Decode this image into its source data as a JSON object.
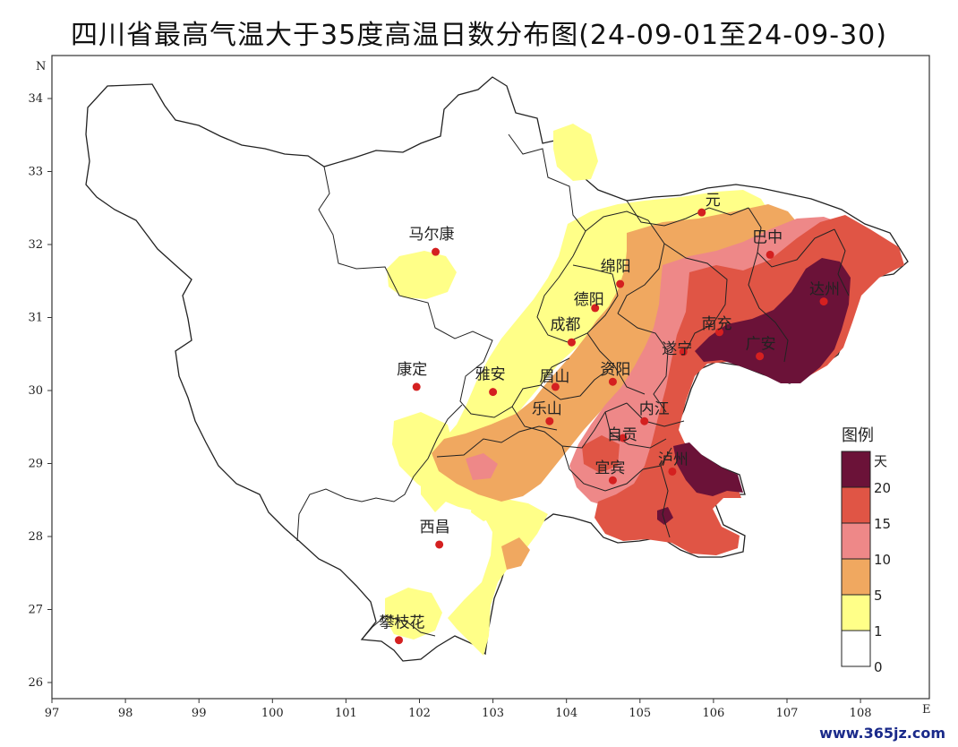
{
  "title": "四川省最高气温大于35度高温日数分布图(24-09-01至24-09-30)",
  "watermark": "www.365jz.com",
  "axes": {
    "x_ticks": [
      "97",
      "98",
      "99",
      "100",
      "101",
      "102",
      "103",
      "104",
      "105",
      "106",
      "107",
      "108"
    ],
    "y_ticks": [
      "26",
      "27",
      "28",
      "29",
      "30",
      "31",
      "32",
      "33",
      "34"
    ],
    "x_end_label": "E",
    "y_end_label": "N"
  },
  "colors": {
    "c0": "#ffffff",
    "c1": "#ffff88",
    "c5": "#f0a860",
    "c10": "#ee8888",
    "c15": "#e05545",
    "c20": "#6b1238",
    "boundary": "#222222",
    "city_dot": "#d42020"
  },
  "cities": [
    {
      "name": "马尔康",
      "lon": 102.22,
      "lat": 31.9
    },
    {
      "name": "康定",
      "lon": 101.96,
      "lat": 30.05
    },
    {
      "name": "雅安",
      "lon": 103.0,
      "lat": 29.98
    },
    {
      "name": "成都",
      "lon": 104.07,
      "lat": 30.66
    },
    {
      "name": "绵阳",
      "lon": 104.73,
      "lat": 31.46
    },
    {
      "name": "德阳",
      "lon": 104.39,
      "lat": 31.13
    },
    {
      "name": "眉山",
      "lon": 103.85,
      "lat": 30.05
    },
    {
      "name": "乐山",
      "lon": 103.77,
      "lat": 29.58
    },
    {
      "name": "资阳",
      "lon": 104.63,
      "lat": 30.12
    },
    {
      "name": "遂宁",
      "lon": 105.59,
      "lat": 30.53
    },
    {
      "name": "南充",
      "lon": 106.08,
      "lat": 30.8
    },
    {
      "name": "广安",
      "lon": 106.63,
      "lat": 30.47
    },
    {
      "name": "达州",
      "lon": 107.5,
      "lat": 31.22
    },
    {
      "name": "巴中",
      "lon": 106.77,
      "lat": 31.86
    },
    {
      "name": "广元",
      "lon": 105.84,
      "lat": 32.44
    },
    {
      "name": "内江",
      "lon": 105.06,
      "lat": 29.58
    },
    {
      "name": "自贡",
      "lon": 104.77,
      "lat": 29.35
    },
    {
      "name": "宜宾",
      "lon": 104.63,
      "lat": 28.77
    },
    {
      "name": "泸州",
      "lon": 105.44,
      "lat": 28.89
    },
    {
      "name": "西昌",
      "lon": 102.27,
      "lat": 27.89
    },
    {
      "name": "攀枝花",
      "lon": 101.72,
      "lat": 26.58
    }
  ],
  "city_labels": {
    "马尔康": "马尔康",
    "康定": "康定",
    "雅安": "雅安",
    "成都": "成都",
    "绵阳": "绵阳",
    "德阳": "德阳",
    "眉山": "眉山",
    "乐山": "乐山",
    "资阳": "资阳",
    "遂宁": "遂宁",
    "南充": "南充",
    "广安": "广安",
    "达州": "达州",
    "巴中": "巴中",
    "广元": "元",
    "内江": "内江",
    "自贡": "自贡",
    "宜宾": "宜宾",
    "泸州": "泸州",
    "西昌": "西昌",
    "攀枝花": "攀枝花"
  },
  "legend": {
    "title": "图例",
    "unit": "天",
    "levels": [
      {
        "label": "20",
        "color_key": "c20"
      },
      {
        "label": "15",
        "color_key": "c15"
      },
      {
        "label": "10",
        "color_key": "c10"
      },
      {
        "label": "5",
        "color_key": "c5"
      },
      {
        "label": "1",
        "color_key": "c1"
      },
      {
        "label": "0",
        "color_key": "c0"
      }
    ]
  }
}
